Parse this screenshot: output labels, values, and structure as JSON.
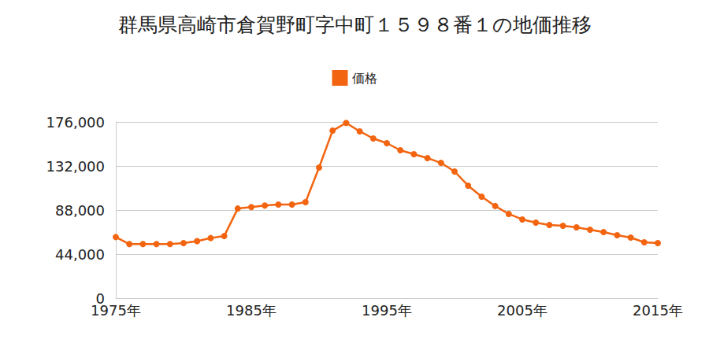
{
  "chart_data": {
    "type": "line",
    "title": "群馬県高崎市倉賀野町字中町１５９８番１の地価推移",
    "categories": [
      "1975年",
      null,
      null,
      null,
      null,
      null,
      null,
      null,
      null,
      null,
      "1985年",
      null,
      null,
      null,
      null,
      null,
      null,
      null,
      null,
      null,
      "1995年",
      null,
      null,
      null,
      null,
      null,
      null,
      null,
      null,
      null,
      "2005年",
      null,
      null,
      null,
      null,
      null,
      null,
      null,
      null,
      null,
      "2015年"
    ],
    "series": [
      {
        "name": "価格",
        "color": "#f26410",
        "marker": "circle",
        "values": [
          61000,
          54000,
          54000,
          54000,
          54000,
          55000,
          57000,
          60000,
          62000,
          89500,
          91000,
          92500,
          93500,
          93500,
          95800,
          130400,
          167300,
          175000,
          166600,
          159500,
          154800,
          147700,
          143800,
          139900,
          135100,
          126500,
          112400,
          101400,
          92000,
          84100,
          78600,
          75400,
          73100,
          72300,
          70700,
          68400,
          66000,
          62900,
          60500,
          55800,
          55000
        ]
      }
    ],
    "ylim": [
      0,
      176000
    ],
    "yticks": [
      0,
      {
        "value": 44000,
        "label": "44,000"
      },
      {
        "value": 88000,
        "label": "88,000"
      },
      {
        "value": 132000,
        "label": "132,000"
      },
      {
        "value": 176000,
        "label": "176,000"
      }
    ],
    "grid": true,
    "legend": "top"
  }
}
